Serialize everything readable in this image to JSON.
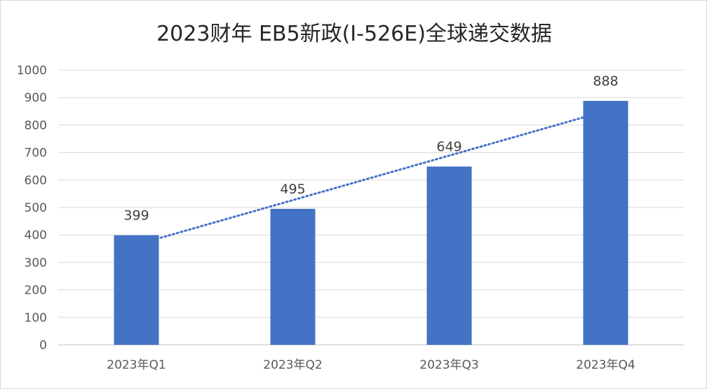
{
  "chart_data": {
    "type": "bar",
    "title": "2023财年 EB5新政(I-526E)全球递交数据",
    "categories": [
      "2023年Q1",
      "2023年Q2",
      "2023年Q3",
      "2023年Q4"
    ],
    "series": [
      {
        "values": [
          399,
          495,
          649,
          888
        ],
        "color": "#4472c4"
      }
    ],
    "trendline": {
      "type": "linear",
      "style": "dotted",
      "color": "#4472c4"
    },
    "ylim": [
      0,
      1000
    ],
    "yticks": [
      0,
      100,
      200,
      300,
      400,
      500,
      600,
      700,
      800,
      900,
      1000
    ],
    "grid": true,
    "legend": "none",
    "data_labels": true
  },
  "colors": {
    "bar": "#4472c4",
    "grid": "#d9d9d9",
    "axis": "#bfbfbf"
  }
}
